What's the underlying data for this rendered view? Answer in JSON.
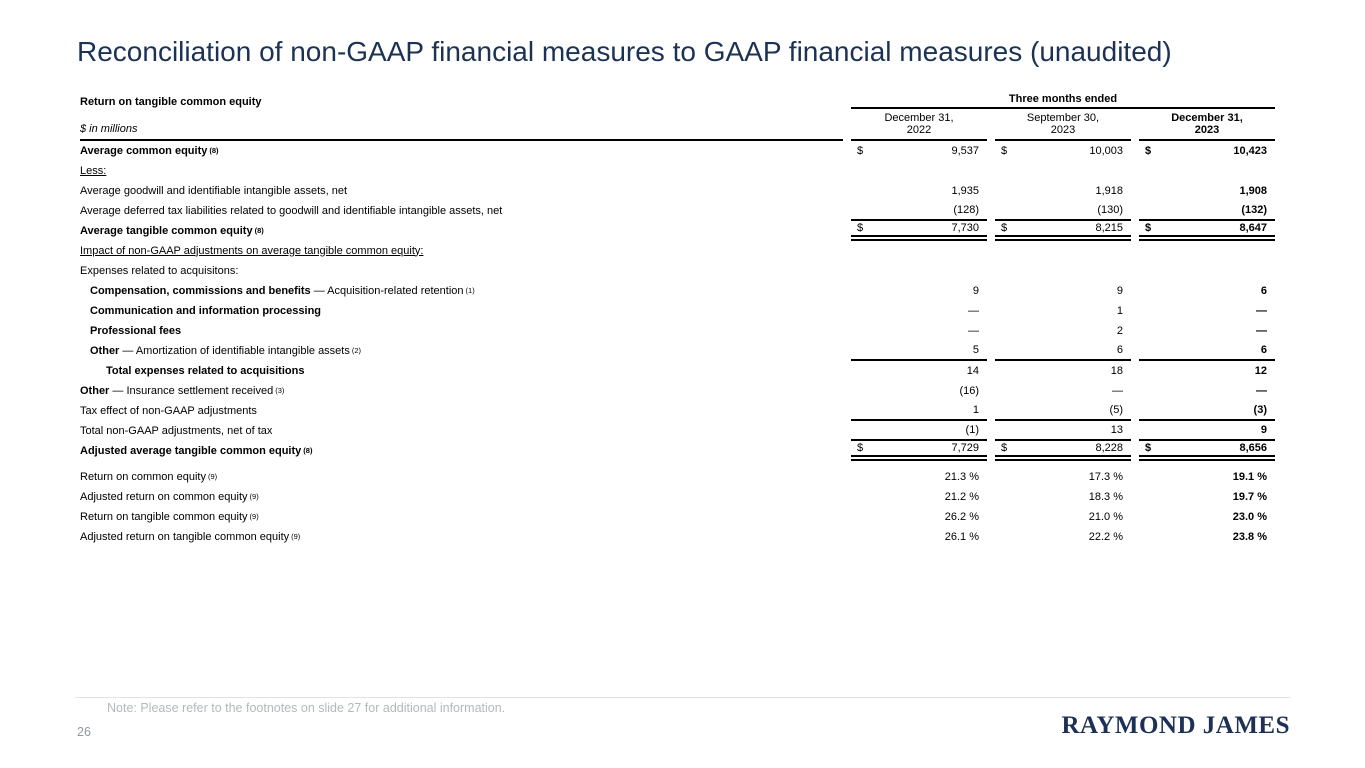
{
  "slide": {
    "title": "Reconciliation of non-GAAP financial measures to GAAP financial measures (unaudited)",
    "note": "Note: Please refer to the footnotes on slide 27 for additional information.",
    "page_number": "26",
    "logo_text": "RAYMOND JAMES",
    "colors": {
      "title_navy": "#1c3254",
      "logo_navy": "#1d3156",
      "note_gray": "#b4b8bc",
      "page_gray": "#94989c",
      "footer_rule_gray": "#e3e3e3",
      "table_rule_black": "#000000"
    }
  },
  "table": {
    "section_title": "Return on tangible common equity",
    "units_label": "$ in millions",
    "span_header": "Three months ended",
    "columns": [
      {
        "line1": "December 31,",
        "line2": "2022",
        "bold": false
      },
      {
        "line1": "September 30,",
        "line2": "2023",
        "bold": false
      },
      {
        "line1": "December 31,",
        "line2": "2023",
        "bold": true
      }
    ],
    "rows": [
      {
        "label": {
          "bold": "Average common equity",
          "regular": "",
          "sup": "(8)"
        },
        "underline": false,
        "indent": 0,
        "currency": "$",
        "values": [
          "9,537",
          "10,003",
          "10,423"
        ],
        "rule": "none",
        "spacer_before": false
      },
      {
        "label": {
          "bold": "",
          "regular": "Less:",
          "sup": ""
        },
        "underline": true,
        "indent": 0,
        "currency": "",
        "values": [
          "",
          "",
          ""
        ],
        "rule": "none",
        "spacer_before": false
      },
      {
        "label": {
          "bold": "",
          "regular": "Average goodwill and identifiable intangible assets, net",
          "sup": ""
        },
        "underline": false,
        "indent": 0,
        "currency": "",
        "values": [
          "1,935",
          "1,918",
          "1,908"
        ],
        "rule": "none",
        "spacer_before": false
      },
      {
        "label": {
          "bold": "",
          "regular": "Average deferred tax liabilities related to goodwill and identifiable intangible assets, net",
          "sup": ""
        },
        "underline": false,
        "indent": 0,
        "currency": "",
        "values": [
          "(128)",
          "(130)",
          "(132)"
        ],
        "rule": "bottom",
        "spacer_before": false
      },
      {
        "label": {
          "bold": "Average tangible common equity",
          "regular": "",
          "sup": "(8)"
        },
        "underline": false,
        "indent": 0,
        "currency": "$",
        "values": [
          "7,730",
          "8,215",
          "8,647"
        ],
        "rule": "double",
        "spacer_before": false
      },
      {
        "label": {
          "bold": "",
          "regular": "Impact of non-GAAP adjustments on average tangible common equity:",
          "sup": ""
        },
        "underline": true,
        "indent": 0,
        "currency": "",
        "values": [
          "",
          "",
          ""
        ],
        "rule": "none",
        "spacer_before": false
      },
      {
        "label": {
          "bold": "",
          "regular": "Expenses related to acquisitons:",
          "sup": ""
        },
        "underline": false,
        "indent": 0,
        "currency": "",
        "values": [
          "",
          "",
          ""
        ],
        "rule": "none",
        "spacer_before": false
      },
      {
        "label": {
          "bold": "Compensation, commissions and benefits",
          "regular": " — Acquisition-related retention",
          "sup": "(1)"
        },
        "underline": false,
        "indent": 1,
        "currency": "",
        "values": [
          "9",
          "9",
          "6"
        ],
        "rule": "none",
        "spacer_before": false
      },
      {
        "label": {
          "bold": "Communication and information processing",
          "regular": "",
          "sup": ""
        },
        "underline": false,
        "indent": 1,
        "currency": "",
        "values": [
          "—",
          "1",
          "—"
        ],
        "rule": "none",
        "spacer_before": false
      },
      {
        "label": {
          "bold": "Professional fees",
          "regular": "",
          "sup": ""
        },
        "underline": false,
        "indent": 1,
        "currency": "",
        "values": [
          "—",
          "2",
          "—"
        ],
        "rule": "none",
        "spacer_before": false
      },
      {
        "label": {
          "bold": "Other",
          "regular": " — Amortization of identifiable intangible assets",
          "sup": "(2)"
        },
        "underline": false,
        "indent": 1,
        "currency": "",
        "values": [
          "5",
          "6",
          "6"
        ],
        "rule": "bottom",
        "spacer_before": false
      },
      {
        "label": {
          "bold": "Total expenses related to acquisitions",
          "regular": "",
          "sup": ""
        },
        "underline": false,
        "indent": 2,
        "currency": "",
        "values": [
          "14",
          "18",
          "12"
        ],
        "rule": "none",
        "spacer_before": false
      },
      {
        "label": {
          "bold": "Other",
          "regular": " — Insurance settlement received",
          "sup": "(3)"
        },
        "underline": false,
        "indent": 0,
        "currency": "",
        "values": [
          "(16)",
          "—",
          "—"
        ],
        "rule": "none",
        "spacer_before": false
      },
      {
        "label": {
          "bold": "",
          "regular": "Tax effect of non-GAAP adjustments",
          "sup": ""
        },
        "underline": false,
        "indent": 0,
        "currency": "",
        "values": [
          "1",
          "(5)",
          "(3)"
        ],
        "rule": "bottom",
        "spacer_before": false
      },
      {
        "label": {
          "bold": "",
          "regular": "Total non-GAAP adjustments, net of tax",
          "sup": ""
        },
        "underline": false,
        "indent": 0,
        "currency": "",
        "values": [
          "(1)",
          "13",
          "9"
        ],
        "rule": "bottom",
        "spacer_before": false
      },
      {
        "label": {
          "bold": "Adjusted average tangible common equity",
          "regular": "",
          "sup": "(8)"
        },
        "underline": false,
        "indent": 0,
        "currency": "$",
        "values": [
          "7,729",
          "8,228",
          "8,656"
        ],
        "rule": "double",
        "spacer_before": false
      },
      {
        "label": {
          "bold": "",
          "regular": "Return on common equity",
          "sup": "(9)"
        },
        "underline": false,
        "indent": 0,
        "currency": "",
        "values": [
          "21.3 %",
          "17.3 %",
          "19.1 %"
        ],
        "rule": "none",
        "spacer_before": true
      },
      {
        "label": {
          "bold": "",
          "regular": "Adjusted return on common equity",
          "sup": "(9)"
        },
        "underline": false,
        "indent": 0,
        "currency": "",
        "values": [
          "21.2 %",
          "18.3 %",
          "19.7 %"
        ],
        "rule": "none",
        "spacer_before": false
      },
      {
        "label": {
          "bold": "",
          "regular": "Return on tangible common equity",
          "sup": "(9)"
        },
        "underline": false,
        "indent": 0,
        "currency": "",
        "values": [
          "26.2 %",
          "21.0 %",
          "23.0 %"
        ],
        "rule": "none",
        "spacer_before": false
      },
      {
        "label": {
          "bold": "",
          "regular": "Adjusted return on tangible common equity",
          "sup": "(9)"
        },
        "underline": false,
        "indent": 0,
        "currency": "",
        "values": [
          "26.1 %",
          "22.2 %",
          "23.8 %"
        ],
        "rule": "none",
        "spacer_before": false
      }
    ]
  }
}
